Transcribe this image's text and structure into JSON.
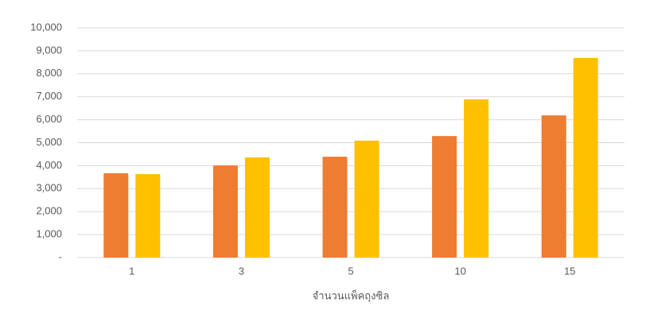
{
  "chart_data": {
    "type": "bar",
    "x_label": "จำนวนแพ็คถุงซิล",
    "categories": [
      "1",
      "3",
      "5",
      "10",
      "15"
    ],
    "series": [
      {
        "color": "#ed7d31",
        "values": [
          3670,
          4010,
          4390,
          5290,
          6190
        ]
      },
      {
        "color": "#ffc000",
        "values": [
          3630,
          4360,
          5090,
          6890,
          8690
        ]
      }
    ],
    "ylim": [
      0,
      10000
    ],
    "yticks": [
      {
        "value": 0,
        "label": "-"
      },
      {
        "value": 1000,
        "label": "1,000"
      },
      {
        "value": 2000,
        "label": "2,000"
      },
      {
        "value": 3000,
        "label": "3,000"
      },
      {
        "value": 4000,
        "label": "4,000"
      },
      {
        "value": 5000,
        "label": "5,000"
      },
      {
        "value": 6000,
        "label": "6,000"
      },
      {
        "value": 7000,
        "label": "7,000"
      },
      {
        "value": 8000,
        "label": "8,000"
      },
      {
        "value": 9000,
        "label": "9,000"
      },
      {
        "value": 10000,
        "label": "10,000"
      }
    ],
    "grid": true
  }
}
